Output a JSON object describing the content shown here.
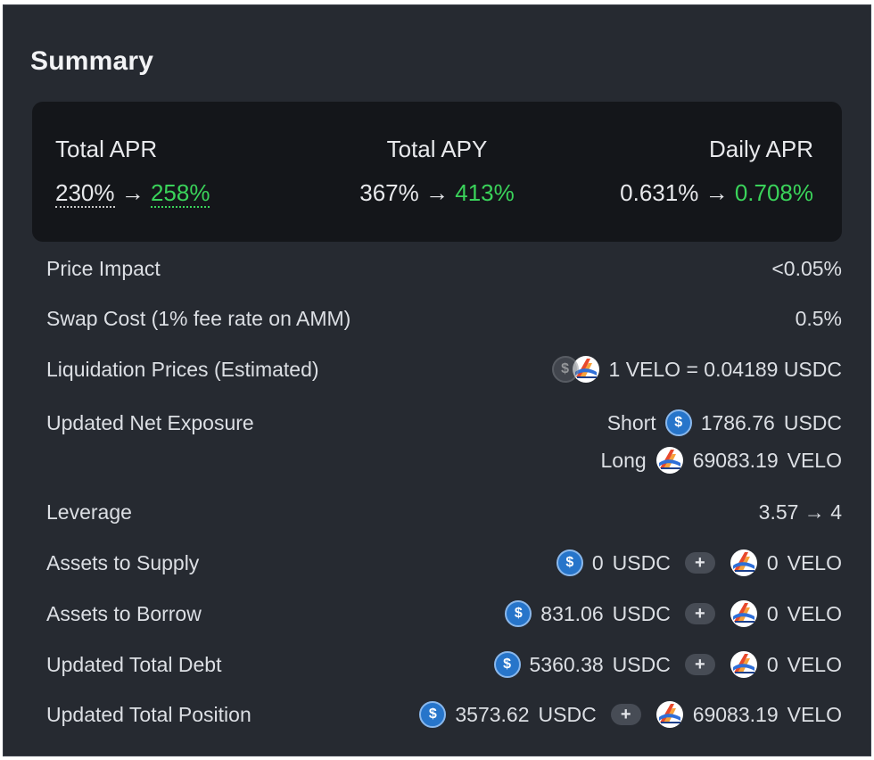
{
  "summary": {
    "title": "Summary",
    "total_apr": {
      "label": "Total APR",
      "from": "230%",
      "arrow": "→",
      "to": "258%"
    },
    "total_apy": {
      "label": "Total APY",
      "from": "367%",
      "arrow": "→",
      "to": "413%"
    },
    "daily_apr": {
      "label": "Daily APR",
      "from": "0.631%",
      "arrow": "→",
      "to": "0.708%"
    }
  },
  "rows": {
    "price_impact": {
      "label": "Price Impact",
      "value": "<0.05%"
    },
    "swap_cost": {
      "label": "Swap Cost (1% fee rate on AMM)",
      "value": "0.5%"
    },
    "liquidation": {
      "label": "Liquidation Prices (Estimated)",
      "value": "1 VELO = 0.04189 USDC"
    },
    "net_exposure": {
      "label": "Updated Net Exposure",
      "short_label": "Short",
      "short_amount": "1786.76",
      "short_token": "USDC",
      "long_label": "Long",
      "long_amount": "69083.19",
      "long_token": "VELO"
    },
    "leverage": {
      "label": "Leverage",
      "value": "3.57 → 4"
    },
    "supply": {
      "label": "Assets to Supply",
      "usdc_amount": "0",
      "usdc_token": "USDC",
      "plus": "+",
      "velo_amount": "0",
      "velo_token": "VELO"
    },
    "borrow": {
      "label": "Assets to Borrow",
      "usdc_amount": "831.06",
      "usdc_token": "USDC",
      "plus": "+",
      "velo_amount": "0",
      "velo_token": "VELO"
    },
    "debt": {
      "label": "Updated Total Debt",
      "usdc_amount": "5360.38",
      "usdc_token": "USDC",
      "plus": "+",
      "velo_amount": "0",
      "velo_token": "VELO"
    },
    "position": {
      "label": "Updated Total Position",
      "usdc_amount": "3573.62",
      "usdc_token": "USDC",
      "plus": "+",
      "velo_amount": "69083.19",
      "velo_token": "VELO"
    }
  },
  "icons": {
    "usdc": "usdc-token-icon",
    "velo": "velo-token-icon"
  },
  "colors": {
    "positive": "#3ad35a",
    "warning": "#f0a733",
    "panel": "#262a31",
    "card": "#14161a"
  }
}
